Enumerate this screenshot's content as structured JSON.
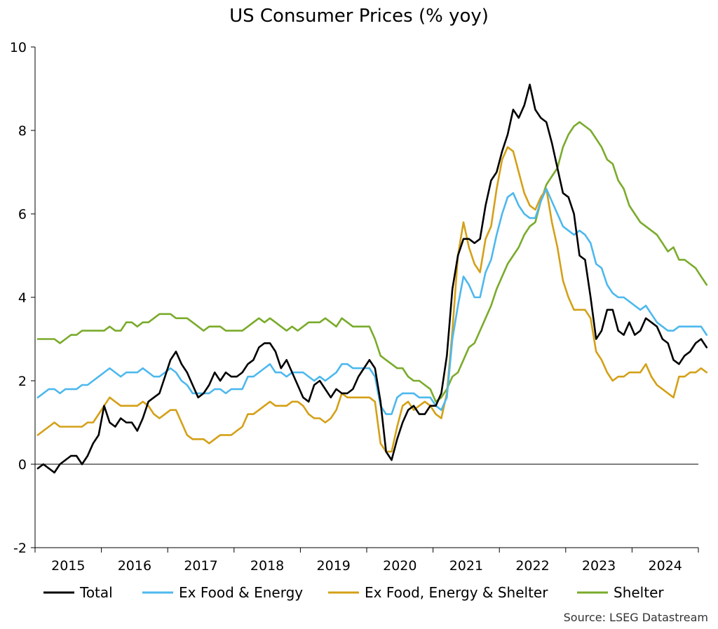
{
  "chart_data": {
    "type": "line",
    "title": "US Consumer Prices (% yoy)",
    "xlabel": "",
    "ylabel": "",
    "ylim": [
      -2,
      10
    ],
    "yticks": [
      -2,
      0,
      2,
      4,
      6,
      8,
      10
    ],
    "x_start_year": 2015,
    "x_end_year": 2024,
    "year_labels": [
      "2015",
      "2016",
      "2017",
      "2018",
      "2019",
      "2020",
      "2021",
      "2022",
      "2023",
      "2024"
    ],
    "source": "Source: LSEG Datastream",
    "series": [
      {
        "name": "Total",
        "color": "#000000",
        "values": [
          -0.1,
          0.0,
          -0.1,
          -0.2,
          0.0,
          0.1,
          0.2,
          0.2,
          0.0,
          0.2,
          0.5,
          0.7,
          1.4,
          1.0,
          0.9,
          1.1,
          1.0,
          1.0,
          0.8,
          1.1,
          1.5,
          1.6,
          1.7,
          2.1,
          2.5,
          2.7,
          2.4,
          2.2,
          1.9,
          1.6,
          1.7,
          1.9,
          2.2,
          2.0,
          2.2,
          2.1,
          2.1,
          2.2,
          2.4,
          2.5,
          2.8,
          2.9,
          2.9,
          2.7,
          2.3,
          2.5,
          2.2,
          1.9,
          1.6,
          1.5,
          1.9,
          2.0,
          1.8,
          1.6,
          1.8,
          1.7,
          1.7,
          1.8,
          2.1,
          2.3,
          2.5,
          2.3,
          1.5,
          0.3,
          0.1,
          0.6,
          1.0,
          1.3,
          1.4,
          1.2,
          1.2,
          1.4,
          1.4,
          1.7,
          2.6,
          4.2,
          5.0,
          5.4,
          5.4,
          5.3,
          5.4,
          6.2,
          6.8,
          7.0,
          7.5,
          7.9,
          8.5,
          8.3,
          8.6,
          9.1,
          8.5,
          8.3,
          8.2,
          7.7,
          7.1,
          6.5,
          6.4,
          6.0,
          5.0,
          4.9,
          4.0,
          3.0,
          3.2,
          3.7,
          3.7,
          3.2,
          3.1,
          3.4,
          3.1,
          3.2,
          3.5,
          3.4,
          3.3,
          3.0,
          2.9,
          2.5,
          2.4,
          2.6,
          2.7,
          2.9,
          3.0,
          2.8
        ]
      },
      {
        "name": "Ex Food & Energy",
        "color": "#4db8ee",
        "values": [
          1.6,
          1.7,
          1.8,
          1.8,
          1.7,
          1.8,
          1.8,
          1.8,
          1.9,
          1.9,
          2.0,
          2.1,
          2.2,
          2.3,
          2.2,
          2.1,
          2.2,
          2.2,
          2.2,
          2.3,
          2.2,
          2.1,
          2.1,
          2.2,
          2.3,
          2.2,
          2.0,
          1.9,
          1.7,
          1.7,
          1.7,
          1.7,
          1.8,
          1.8,
          1.7,
          1.8,
          1.8,
          1.8,
          2.1,
          2.1,
          2.2,
          2.3,
          2.4,
          2.2,
          2.2,
          2.1,
          2.2,
          2.2,
          2.2,
          2.1,
          2.0,
          2.1,
          2.0,
          2.1,
          2.2,
          2.4,
          2.4,
          2.3,
          2.3,
          2.3,
          2.3,
          2.1,
          1.4,
          1.2,
          1.2,
          1.6,
          1.7,
          1.7,
          1.7,
          1.6,
          1.6,
          1.6,
          1.4,
          1.3,
          1.6,
          3.0,
          3.8,
          4.5,
          4.3,
          4.0,
          4.0,
          4.6,
          4.9,
          5.5,
          6.0,
          6.4,
          6.5,
          6.2,
          6.0,
          5.9,
          5.9,
          6.3,
          6.6,
          6.3,
          6.0,
          5.7,
          5.6,
          5.5,
          5.6,
          5.5,
          5.3,
          4.8,
          4.7,
          4.3,
          4.1,
          4.0,
          4.0,
          3.9,
          3.8,
          3.7,
          3.8,
          3.6,
          3.4,
          3.3,
          3.2,
          3.2,
          3.3,
          3.3,
          3.3,
          3.3,
          3.3,
          3.1
        ]
      },
      {
        "name": "Ex Food, Energy & Shelter",
        "color": "#d4a017",
        "values": [
          0.7,
          0.8,
          0.9,
          1.0,
          0.9,
          0.9,
          0.9,
          0.9,
          0.9,
          1.0,
          1.0,
          1.2,
          1.4,
          1.6,
          1.5,
          1.4,
          1.4,
          1.4,
          1.4,
          1.5,
          1.4,
          1.2,
          1.1,
          1.2,
          1.3,
          1.3,
          1.0,
          0.7,
          0.6,
          0.6,
          0.6,
          0.5,
          0.6,
          0.7,
          0.7,
          0.7,
          0.8,
          0.9,
          1.2,
          1.2,
          1.3,
          1.4,
          1.5,
          1.4,
          1.4,
          1.4,
          1.5,
          1.5,
          1.4,
          1.2,
          1.1,
          1.1,
          1.0,
          1.1,
          1.3,
          1.7,
          1.6,
          1.6,
          1.6,
          1.6,
          1.6,
          1.5,
          0.5,
          0.3,
          0.3,
          0.9,
          1.4,
          1.5,
          1.3,
          1.4,
          1.5,
          1.4,
          1.2,
          1.1,
          1.7,
          3.2,
          5.0,
          5.8,
          5.2,
          4.8,
          4.6,
          5.4,
          5.7,
          6.6,
          7.3,
          7.6,
          7.5,
          7.0,
          6.5,
          6.2,
          6.1,
          6.4,
          6.6,
          5.8,
          5.2,
          4.4,
          4.0,
          3.7,
          3.7,
          3.7,
          3.5,
          2.7,
          2.5,
          2.2,
          2.0,
          2.1,
          2.1,
          2.2,
          2.2,
          2.2,
          2.4,
          2.1,
          1.9,
          1.8,
          1.7,
          1.6,
          2.1,
          2.1,
          2.2,
          2.2,
          2.3,
          2.2
        ]
      },
      {
        "name": "Shelter",
        "color": "#7aab2b",
        "values": [
          3.0,
          3.0,
          3.0,
          3.0,
          2.9,
          3.0,
          3.1,
          3.1,
          3.2,
          3.2,
          3.2,
          3.2,
          3.2,
          3.3,
          3.2,
          3.2,
          3.4,
          3.4,
          3.3,
          3.4,
          3.4,
          3.5,
          3.6,
          3.6,
          3.6,
          3.5,
          3.5,
          3.5,
          3.4,
          3.3,
          3.2,
          3.3,
          3.3,
          3.3,
          3.2,
          3.2,
          3.2,
          3.2,
          3.3,
          3.4,
          3.5,
          3.4,
          3.5,
          3.4,
          3.3,
          3.2,
          3.3,
          3.2,
          3.3,
          3.4,
          3.4,
          3.4,
          3.5,
          3.4,
          3.3,
          3.5,
          3.4,
          3.3,
          3.3,
          3.3,
          3.3,
          3.0,
          2.6,
          2.5,
          2.4,
          2.3,
          2.3,
          2.1,
          2.0,
          2.0,
          1.9,
          1.8,
          1.5,
          1.6,
          1.8,
          2.1,
          2.2,
          2.5,
          2.8,
          2.9,
          3.2,
          3.5,
          3.8,
          4.2,
          4.5,
          4.8,
          5.0,
          5.2,
          5.5,
          5.7,
          5.8,
          6.3,
          6.7,
          6.9,
          7.1,
          7.6,
          7.9,
          8.1,
          8.2,
          8.1,
          8.0,
          7.8,
          7.6,
          7.3,
          7.2,
          6.8,
          6.6,
          6.2,
          6.0,
          5.8,
          5.7,
          5.6,
          5.5,
          5.3,
          5.1,
          5.2,
          4.9,
          4.9,
          4.8,
          4.7,
          4.5,
          4.3
        ]
      }
    ]
  }
}
